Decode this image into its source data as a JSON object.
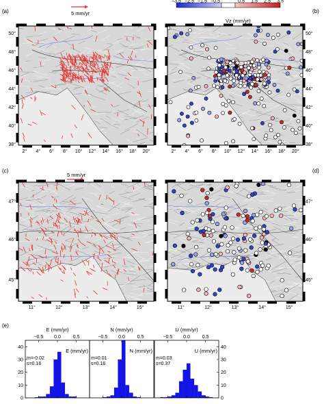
{
  "panels": {
    "a": {
      "label": "(a)",
      "scale": "5 mm/yr"
    },
    "b": {
      "label": "(b)",
      "colorbar_title": "Vz (mm/yr)",
      "colorbar_ticks": [
        "−3.5",
        "−2.5",
        "−1.5",
        "−0.5",
        "0.5",
        "1.5",
        "2.5",
        "3.5"
      ]
    },
    "c": {
      "label": "(c)",
      "scale": "5 mm/yr"
    },
    "d": {
      "label": "(d)"
    },
    "e": {
      "label": "(e)"
    }
  },
  "map_ticks_top": {
    "lon": [
      "2°",
      "4°",
      "6°",
      "8°",
      "10°",
      "12°",
      "14°",
      "16°",
      "18°",
      "20°"
    ],
    "lat": [
      "50°",
      "48°",
      "46°",
      "44°",
      "42°",
      "40°",
      "38°"
    ]
  },
  "map_ticks_bottom": {
    "lon": [
      "11°",
      "12°",
      "13°",
      "14°",
      "15°"
    ],
    "lat": [
      "47°",
      "46°",
      "45°"
    ]
  },
  "colors": {
    "vector": "#e8322d",
    "up": "#d22b2b",
    "down": "#2233cc",
    "hist": "#1414e6",
    "land": "#d8d8d8",
    "sea": "#ececec"
  },
  "chart_data": [
    {
      "type": "bar",
      "title": "E (mm/yr)",
      "legend": "E (mm/yr)",
      "stats": [
        "m=-0.02",
        "s=0.16"
      ],
      "x_ticks": [
        "−0.5",
        "0.0",
        "0.5"
      ],
      "xlim": [
        -0.85,
        0.85
      ],
      "ylim": [
        0,
        45
      ],
      "y_ticks": [
        "0",
        "10",
        "20",
        "30",
        "40"
      ],
      "bin_centers": [
        -0.75,
        -0.65,
        -0.55,
        -0.45,
        -0.35,
        -0.25,
        -0.15,
        -0.05,
        0.05,
        0.15,
        0.25,
        0.35,
        0.45,
        0.55,
        0.65,
        0.75
      ],
      "values": [
        0,
        0,
        0.5,
        1,
        1,
        3,
        9,
        30,
        36,
        12,
        3,
        1,
        1,
        0,
        0,
        0
      ]
    },
    {
      "type": "bar",
      "title": "N (mm/yr)",
      "legend": "N (mm/yr)",
      "stats": [
        "m=0.01",
        "s=0.16"
      ],
      "x_ticks": [
        "−0.5",
        "0.0",
        "0.5"
      ],
      "xlim": [
        -0.85,
        0.85
      ],
      "ylim": [
        0,
        45
      ],
      "y_ticks": [
        "0",
        "10",
        "20",
        "30",
        "40"
      ],
      "bin_centers": [
        -0.75,
        -0.65,
        -0.55,
        -0.45,
        -0.35,
        -0.25,
        -0.15,
        -0.05,
        0.05,
        0.15,
        0.25,
        0.35,
        0.45,
        0.55,
        0.65,
        0.75
      ],
      "values": [
        0,
        0,
        0,
        0.5,
        1,
        2,
        8,
        30,
        45,
        10,
        4,
        1,
        0.5,
        0,
        0,
        0
      ]
    },
    {
      "type": "bar",
      "title": "U (mm/yr)",
      "legend": "U (mm/yr)",
      "stats": [
        "m=0.03",
        "s=0.37"
      ],
      "x_ticks": [
        "−0.5",
        "0.0",
        "0.5"
      ],
      "xlim": [
        -0.85,
        0.85
      ],
      "ylim": [
        0,
        45
      ],
      "y_ticks": [
        "0",
        "10",
        "20",
        "30",
        "40"
      ],
      "bin_centers": [
        -0.75,
        -0.65,
        -0.55,
        -0.45,
        -0.35,
        -0.25,
        -0.15,
        -0.05,
        0.05,
        0.15,
        0.25,
        0.35,
        0.45,
        0.55,
        0.65,
        0.75
      ],
      "values": [
        0,
        0.5,
        0.5,
        1,
        2,
        4,
        13,
        22,
        27,
        15,
        10,
        5,
        2,
        1,
        0.5,
        0
      ]
    }
  ]
}
